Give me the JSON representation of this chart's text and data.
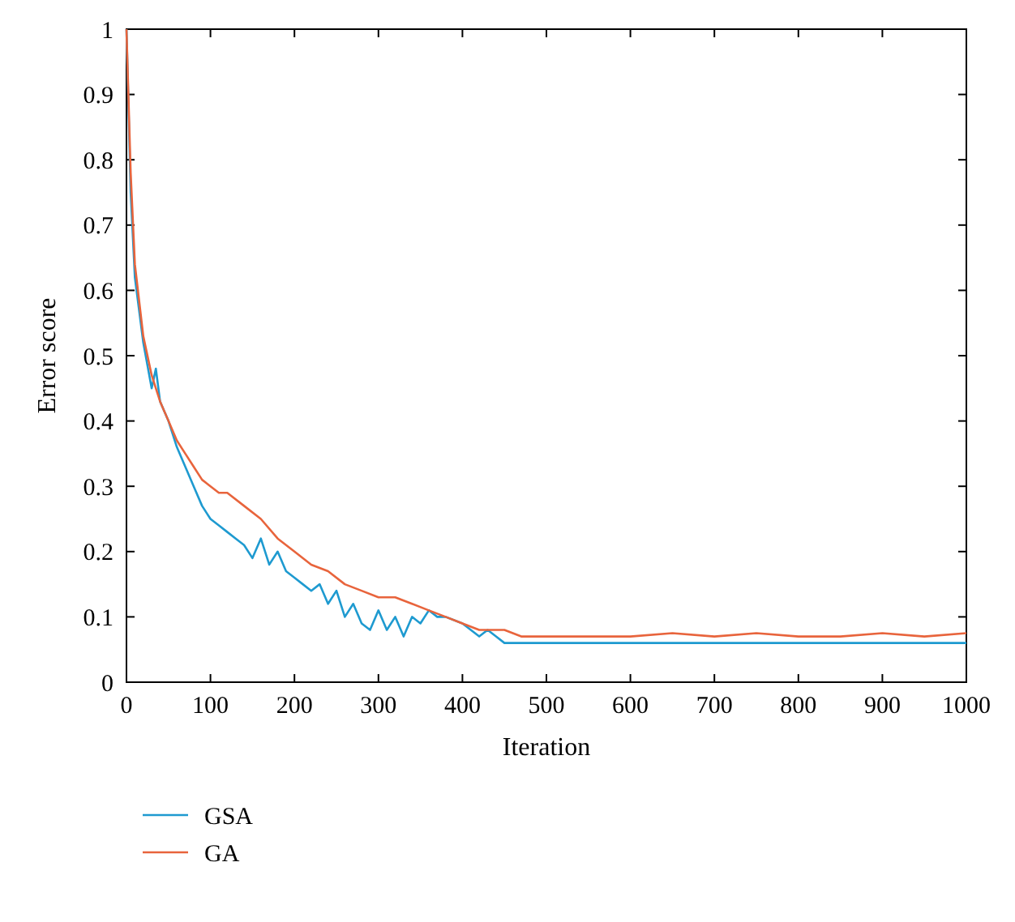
{
  "chart_data": {
    "type": "line",
    "xlabel": "Iteration",
    "ylabel": "Error score",
    "xlim": [
      0,
      1000
    ],
    "ylim": [
      0,
      1
    ],
    "xticks": [
      0,
      100,
      200,
      300,
      400,
      500,
      600,
      700,
      800,
      900,
      1000
    ],
    "yticks": [
      0,
      0.1,
      0.2,
      0.3,
      0.4,
      0.5,
      0.6,
      0.7,
      0.8,
      0.9,
      1
    ],
    "grid": false,
    "legend": "bottom left",
    "line_style": "solid",
    "series": [
      {
        "name": "GSA",
        "color": "#1e9ad0",
        "x": [
          0,
          5,
          10,
          20,
          30,
          35,
          40,
          50,
          60,
          70,
          80,
          90,
          100,
          110,
          120,
          130,
          140,
          150,
          160,
          170,
          180,
          190,
          200,
          210,
          220,
          230,
          240,
          250,
          260,
          270,
          280,
          290,
          300,
          310,
          320,
          330,
          340,
          350,
          360,
          370,
          380,
          400,
          420,
          430,
          440,
          450,
          500,
          600,
          700,
          800,
          900,
          1000
        ],
        "values": [
          1,
          0.75,
          0.62,
          0.52,
          0.45,
          0.48,
          0.43,
          0.4,
          0.36,
          0.33,
          0.3,
          0.27,
          0.25,
          0.24,
          0.23,
          0.22,
          0.21,
          0.19,
          0.22,
          0.18,
          0.2,
          0.17,
          0.16,
          0.15,
          0.14,
          0.15,
          0.12,
          0.14,
          0.1,
          0.12,
          0.09,
          0.08,
          0.11,
          0.08,
          0.1,
          0.07,
          0.1,
          0.09,
          0.11,
          0.1,
          0.1,
          0.09,
          0.07,
          0.08,
          0.07,
          0.06,
          0.06,
          0.06,
          0.06,
          0.06,
          0.06,
          0.06
        ]
      },
      {
        "name": "GA",
        "color": "#e8643c",
        "x": [
          0,
          5,
          10,
          20,
          30,
          40,
          50,
          60,
          70,
          80,
          90,
          100,
          110,
          120,
          140,
          160,
          180,
          200,
          220,
          240,
          260,
          280,
          300,
          320,
          340,
          360,
          380,
          400,
          420,
          450,
          470,
          500,
          550,
          600,
          650,
          700,
          750,
          800,
          850,
          900,
          950,
          1000
        ],
        "values": [
          1,
          0.78,
          0.64,
          0.53,
          0.47,
          0.43,
          0.4,
          0.37,
          0.35,
          0.33,
          0.31,
          0.3,
          0.29,
          0.29,
          0.27,
          0.25,
          0.22,
          0.2,
          0.18,
          0.17,
          0.15,
          0.14,
          0.13,
          0.13,
          0.12,
          0.11,
          0.1,
          0.09,
          0.08,
          0.08,
          0.07,
          0.07,
          0.07,
          0.07,
          0.075,
          0.07,
          0.075,
          0.07,
          0.07,
          0.075,
          0.07,
          0.075
        ]
      }
    ]
  }
}
